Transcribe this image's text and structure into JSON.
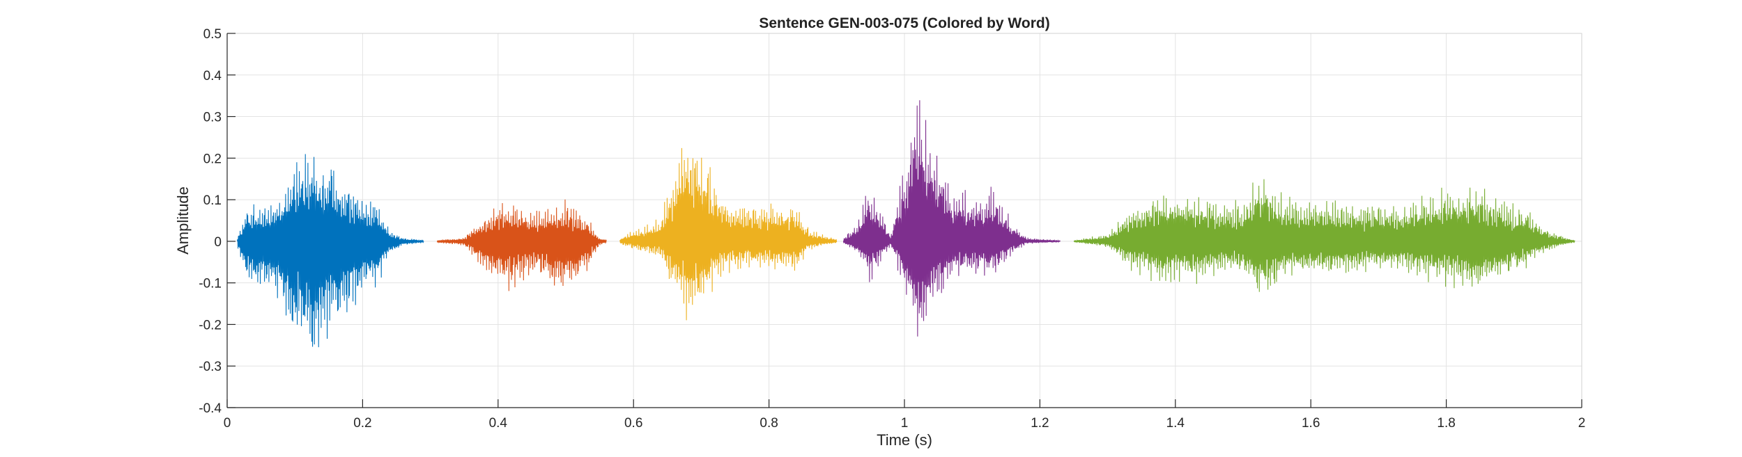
{
  "chart_data": {
    "type": "line",
    "title": "Sentence GEN-003-075 (Colored by Word)",
    "xlabel": "Time (s)",
    "ylabel": "Amplitude",
    "xlim": [
      0,
      2
    ],
    "ylim": [
      -0.4,
      0.5
    ],
    "xticks": [
      "0",
      "0.2",
      "0.4",
      "0.6",
      "0.8",
      "1",
      "1.2",
      "1.4",
      "1.6",
      "1.8",
      "2"
    ],
    "yticks": [
      "-0.4",
      "-0.3",
      "-0.2",
      "-0.1",
      "0",
      "0.1",
      "0.2",
      "0.3",
      "0.4",
      "0.5"
    ],
    "grid": true,
    "series": [
      {
        "color": "#0072BD",
        "x_range": [
          0.015,
          0.29
        ],
        "envelope": [
          [
            0.015,
            0.01
          ],
          [
            0.03,
            0.1
          ],
          [
            0.06,
            0.1
          ],
          [
            0.08,
            0.14
          ],
          [
            0.1,
            0.22
          ],
          [
            0.13,
            0.26
          ],
          [
            0.16,
            0.2
          ],
          [
            0.2,
            0.11
          ],
          [
            0.22,
            0.1
          ],
          [
            0.24,
            0.03
          ],
          [
            0.26,
            0.01
          ],
          [
            0.29,
            0.003
          ]
        ],
        "min_value": -0.32
      },
      {
        "color": "#D95319",
        "x_range": [
          0.31,
          0.56
        ],
        "envelope": [
          [
            0.31,
            0.003
          ],
          [
            0.35,
            0.01
          ],
          [
            0.37,
            0.05
          ],
          [
            0.4,
            0.1
          ],
          [
            0.42,
            0.11
          ],
          [
            0.45,
            0.08
          ],
          [
            0.48,
            0.1
          ],
          [
            0.5,
            0.11
          ],
          [
            0.53,
            0.07
          ],
          [
            0.55,
            0.01
          ],
          [
            0.56,
            0.003
          ]
        ],
        "min_value": -0.13
      },
      {
        "color": "#EDB120",
        "x_range": [
          0.58,
          0.9
        ],
        "envelope": [
          [
            0.58,
            0.01
          ],
          [
            0.6,
            0.03
          ],
          [
            0.64,
            0.06
          ],
          [
            0.66,
            0.2
          ],
          [
            0.68,
            0.3
          ],
          [
            0.7,
            0.25
          ],
          [
            0.73,
            0.12
          ],
          [
            0.76,
            0.1
          ],
          [
            0.82,
            0.1
          ],
          [
            0.84,
            0.1
          ],
          [
            0.86,
            0.03
          ],
          [
            0.9,
            0.005
          ]
        ],
        "min_value": -0.22
      },
      {
        "color": "#7E2F8E",
        "x_range": [
          0.91,
          1.23
        ],
        "envelope": [
          [
            0.91,
            0.01
          ],
          [
            0.93,
            0.05
          ],
          [
            0.95,
            0.16
          ],
          [
            0.96,
            0.1
          ],
          [
            0.98,
            0.02
          ],
          [
            1.0,
            0.2
          ],
          [
            1.02,
            0.43
          ],
          [
            1.04,
            0.3
          ],
          [
            1.07,
            0.15
          ],
          [
            1.1,
            0.12
          ],
          [
            1.13,
            0.15
          ],
          [
            1.16,
            0.05
          ],
          [
            1.18,
            0.01
          ],
          [
            1.23,
            0.002
          ]
        ],
        "min_value": -0.29
      },
      {
        "color": "#77AC30",
        "x_range": [
          1.25,
          1.99
        ],
        "envelope": [
          [
            1.25,
            0.002
          ],
          [
            1.3,
            0.02
          ],
          [
            1.33,
            0.08
          ],
          [
            1.38,
            0.14
          ],
          [
            1.43,
            0.13
          ],
          [
            1.47,
            0.1
          ],
          [
            1.5,
            0.11
          ],
          [
            1.53,
            0.19
          ],
          [
            1.56,
            0.12
          ],
          [
            1.62,
            0.11
          ],
          [
            1.68,
            0.1
          ],
          [
            1.74,
            0.1
          ],
          [
            1.8,
            0.14
          ],
          [
            1.84,
            0.16
          ],
          [
            1.88,
            0.12
          ],
          [
            1.92,
            0.08
          ],
          [
            1.95,
            0.03
          ],
          [
            1.99,
            0.003
          ]
        ],
        "min_value": -0.16
      }
    ]
  }
}
